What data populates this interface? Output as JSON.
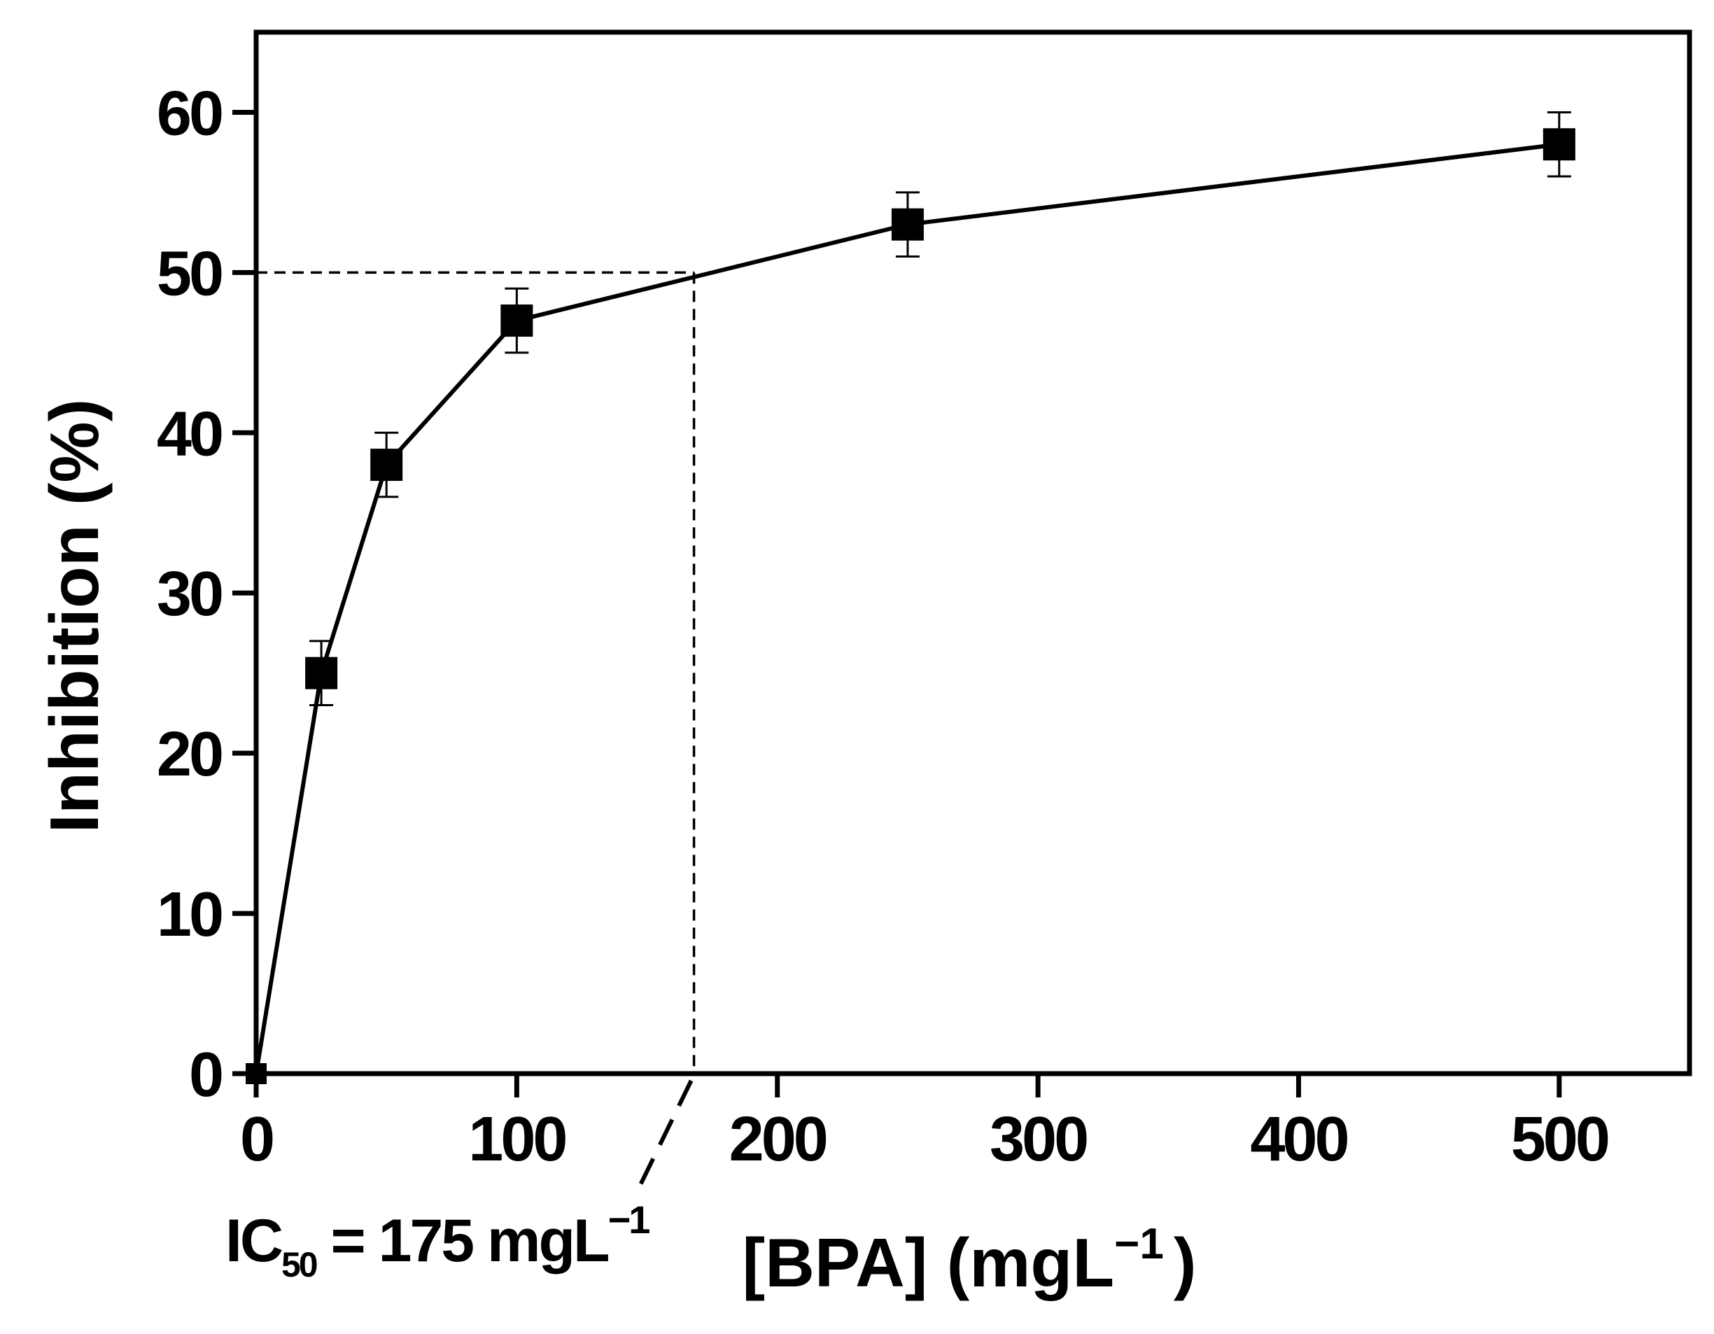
{
  "chart_data": {
    "type": "line",
    "x": [
      0,
      25,
      50,
      100,
      250,
      500
    ],
    "series": [
      {
        "values": [
          0,
          25,
          38,
          47,
          53,
          58
        ],
        "errors": [
          0,
          2,
          2,
          2,
          2,
          2
        ]
      }
    ],
    "xlim": [
      0,
      550
    ],
    "ylim": [
      0,
      65
    ],
    "xticks": [
      0,
      100,
      200,
      300,
      400,
      500
    ],
    "yticks": [
      0,
      10,
      20,
      30,
      40,
      50,
      60
    ],
    "xlabel": "[BPA] (mgL",
    "xlabel_sup": "−1",
    "xlabel_close": ")",
    "ylabel": "Inhibition (%)",
    "grid": false,
    "annotation": {
      "ic50_x": 168,
      "ic50_y": 50,
      "prefix": "IC",
      "sub": "50",
      "text": " = 175 mgL",
      "sup": "−1"
    },
    "colors": {
      "line": "#000000",
      "marker": "#000000"
    }
  }
}
